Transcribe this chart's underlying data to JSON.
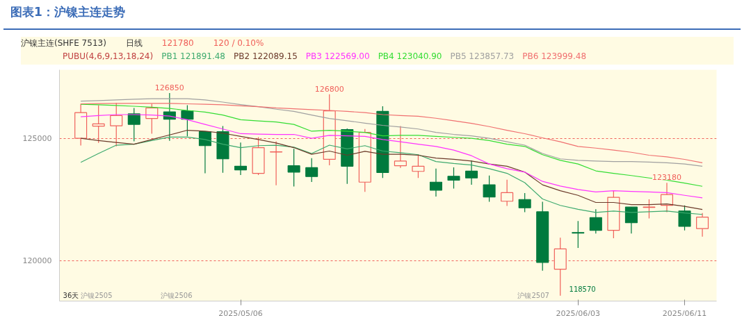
{
  "chart_data": {
    "type": "candlestick",
    "title": "图表1：沪镍主连走势",
    "categories": [
      null,
      null,
      null,
      null,
      null,
      null,
      null,
      null,
      null,
      "2025/05/06",
      null,
      null,
      null,
      null,
      null,
      null,
      null,
      null,
      null,
      null,
      null,
      null,
      null,
      null,
      null,
      null,
      null,
      null,
      "2025/06/03",
      null,
      null,
      null,
      null,
      null,
      "2025/06/11",
      null
    ],
    "ohlc": [
      [
        125000,
        126410,
        124710,
        126050
      ],
      [
        125500,
        126350,
        124810,
        125590
      ],
      [
        125510,
        126450,
        124670,
        125930
      ],
      [
        126000,
        126240,
        124880,
        125570
      ],
      [
        125810,
        126410,
        125190,
        126240
      ],
      [
        126080,
        126850,
        124900,
        125780
      ],
      [
        126120,
        126350,
        125080,
        125780
      ],
      [
        125270,
        125290,
        123570,
        124700
      ],
      [
        125270,
        125500,
        123590,
        124160
      ],
      [
        123860,
        124830,
        123500,
        123710
      ],
      [
        123570,
        125050,
        123500,
        124620
      ],
      [
        124440,
        124880,
        123080,
        124450
      ],
      [
        123880,
        124570,
        123030,
        123620
      ],
      [
        123800,
        124190,
        123220,
        123440
      ],
      [
        124140,
        126800,
        123900,
        126120
      ],
      [
        125360,
        125400,
        123140,
        123860
      ],
      [
        123210,
        125380,
        122810,
        125240
      ],
      [
        126100,
        126310,
        123380,
        123600
      ],
      [
        123880,
        125500,
        123790,
        124070
      ],
      [
        123650,
        124350,
        123380,
        123860
      ],
      [
        123210,
        123760,
        122620,
        122880
      ],
      [
        123450,
        123810,
        122950,
        123290
      ],
      [
        123660,
        124100,
        123100,
        123380
      ],
      [
        123100,
        123480,
        122410,
        122600
      ],
      [
        122430,
        123310,
        122240,
        122780
      ],
      [
        122500,
        122760,
        121980,
        122160
      ],
      [
        122000,
        122410,
        119590,
        119930
      ],
      [
        119650,
        120940,
        118570,
        120480
      ],
      [
        121150,
        121620,
        120520,
        121130
      ],
      [
        121760,
        122100,
        121110,
        121240
      ],
      [
        121240,
        122860,
        120920,
        122590
      ],
      [
        122190,
        122190,
        121110,
        121550
      ],
      [
        122180,
        122510,
        121730,
        122190
      ],
      [
        122260,
        123180,
        121980,
        122700
      ],
      [
        122030,
        122260,
        121240,
        121400
      ],
      [
        121310,
        121950,
        120980,
        121780
      ]
    ],
    "series": [
      {
        "name": "PB1 121891.48",
        "type": "line",
        "color": "#3daa6e",
        "values": [
          124020,
          124380,
          124720,
          124760,
          124910,
          125050,
          125050,
          124950,
          124760,
          124620,
          124700,
          124720,
          124640,
          124380,
          124720,
          124570,
          124700,
          124480,
          124410,
          124330,
          124050,
          123970,
          123910,
          123760,
          123570,
          123190,
          122520,
          122260,
          122100,
          121970,
          122030,
          121970,
          122000,
          122030,
          121950,
          121890
        ]
      },
      {
        "name": "PB2 122089.15",
        "type": "line",
        "color": "#6b3a2a",
        "values": [
          125000,
          124910,
          124830,
          124760,
          124950,
          125140,
          125330,
          125290,
          125210,
          125080,
          124950,
          124810,
          124620,
          124350,
          124480,
          124310,
          124470,
          124350,
          124350,
          124310,
          124190,
          124140,
          124070,
          123950,
          123860,
          123620,
          123100,
          122860,
          122670,
          122380,
          122380,
          122290,
          122290,
          122320,
          122220,
          122090
        ]
      },
      {
        "name": "PB3 122569.00",
        "type": "line",
        "color": "#ff33ff",
        "values": [
          125880,
          125930,
          125970,
          125970,
          125950,
          125910,
          125760,
          125570,
          125380,
          125190,
          125170,
          125160,
          125160,
          125000,
          125120,
          125100,
          125080,
          124950,
          124860,
          124760,
          124670,
          124520,
          124290,
          123950,
          123760,
          123620,
          123240,
          123050,
          122910,
          122810,
          122860,
          122830,
          122810,
          122780,
          122670,
          122570
        ]
      },
      {
        "name": "PB4 123040.90",
        "type": "line",
        "color": "#33dd33",
        "values": [
          126390,
          126370,
          126340,
          126310,
          126270,
          126220,
          126140,
          126070,
          125950,
          125760,
          125710,
          125670,
          125570,
          125290,
          125330,
          125290,
          125240,
          125100,
          125120,
          125120,
          125080,
          125040,
          125000,
          124910,
          124760,
          124670,
          124330,
          124100,
          123950,
          123670,
          123570,
          123480,
          123380,
          123290,
          123170,
          123040
        ]
      },
      {
        "name": "PB5 123857.73",
        "type": "line",
        "color": "#a0a0a0",
        "values": [
          126520,
          126540,
          126570,
          126600,
          126620,
          126620,
          126620,
          126570,
          126480,
          126380,
          126290,
          126190,
          126100,
          125950,
          125810,
          125720,
          125620,
          125530,
          125460,
          125380,
          125240,
          125160,
          125100,
          125000,
          124860,
          124720,
          124380,
          124160,
          124100,
          124070,
          124050,
          124050,
          124030,
          124000,
          123950,
          123860
        ]
      },
      {
        "name": "PB6 123999.48",
        "type": "line",
        "color": "#f07070",
        "values": [
          126410,
          126420,
          126430,
          126430,
          126430,
          126430,
          126410,
          126390,
          126370,
          126330,
          126290,
          126240,
          126210,
          126170,
          126140,
          126100,
          126050,
          125970,
          125930,
          125900,
          125820,
          125720,
          125610,
          125480,
          125330,
          125190,
          125020,
          124860,
          124670,
          124600,
          124520,
          124430,
          124310,
          124240,
          124140,
          124000
        ]
      }
    ],
    "ylim": [
      118350,
      127800
    ],
    "yticks": [
      120000,
      125000
    ],
    "grid": "y",
    "annotations": [
      "沪镍主连(SHFE 7513)",
      "日线",
      "121780",
      "120 / 0.10%",
      "PUBU(4,6,9,13,18,24)",
      "36天",
      "沪镍2505",
      "沪镍2506",
      "沪镍2507",
      "118570",
      {
        "text": "126850",
        "y": 126850
      },
      {
        "text": "126800",
        "y": 126800
      },
      {
        "text": "123180",
        "y": 123180
      }
    ]
  }
}
